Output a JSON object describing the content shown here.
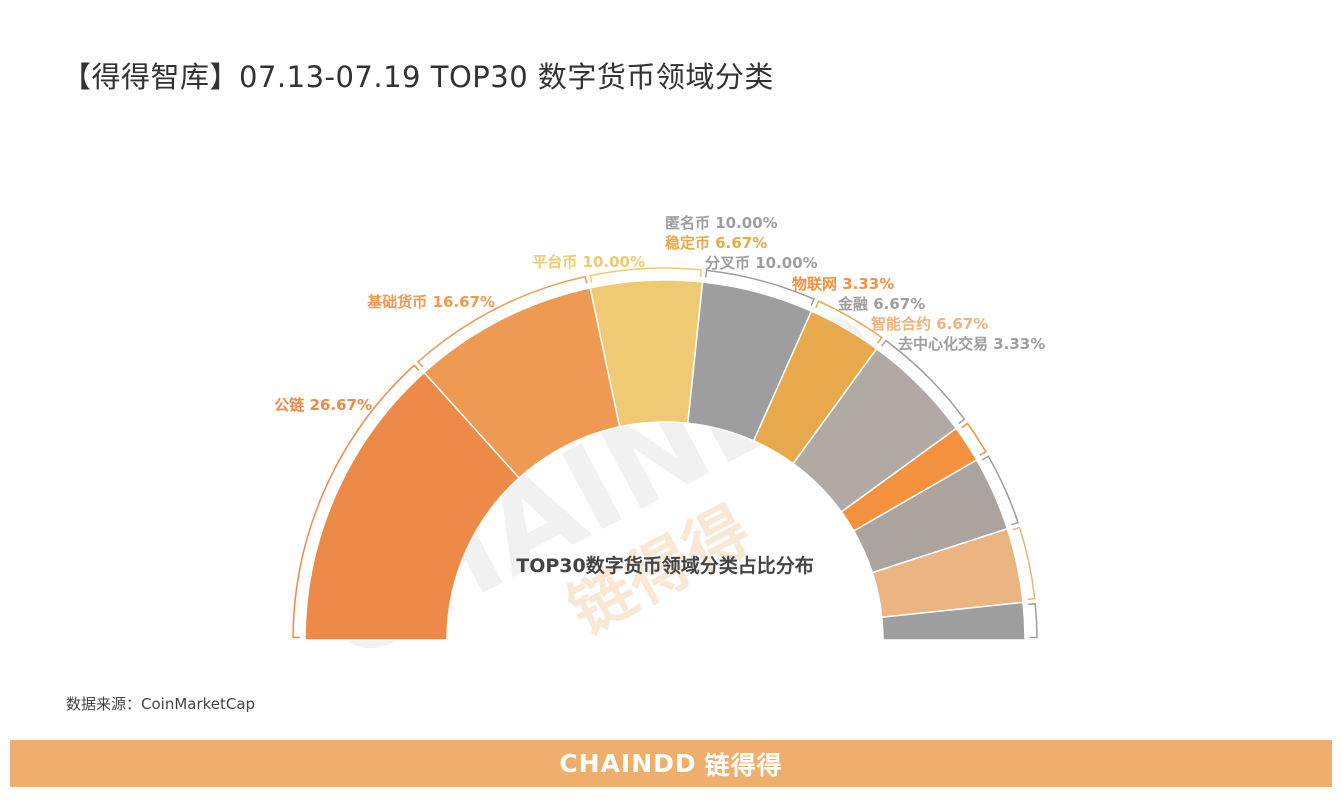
{
  "page": {
    "title": "【得得智库】07.13-07.19  TOP30 数字货币领域分类",
    "source": "数据来源：CoinMarketCap",
    "footer_brand": "CHAINDD",
    "footer_brand_cn": "链得得",
    "watermark_text": "CHAINDD",
    "watermark_cn": "链得得"
  },
  "colors": {
    "gray": "#9E9E9E",
    "pale_gray": "#B1A9A3",
    "orange_dark": "#EE8A47",
    "orange": "#EF9A52",
    "yellow": "#EFCA72",
    "amber": "#E8A84C",
    "bright_orange": "#F3913F",
    "peach": "#EBB480",
    "footer": "#EEAF6C"
  },
  "chart_data": {
    "type": "pie",
    "subtype": "half-donut",
    "center_label": "TOP30数字货币领域分类占比分布",
    "series": [
      {
        "name": "公链",
        "value": 26.67,
        "label": "公链 26.67%",
        "color": "#EE8A47",
        "label_color": "#EE8A47"
      },
      {
        "name": "基础货币",
        "value": 16.67,
        "label": "基础货币 16.67%",
        "color": "#EF9A52",
        "label_color": "#EF9A52"
      },
      {
        "name": "平台币",
        "value": 10.0,
        "label": "平台币 10.00%",
        "color": "#EFCA72",
        "label_color": "#EFCA72"
      },
      {
        "name": "匿名币",
        "value": 10.0,
        "label": "匿名币 10.00%",
        "color": "#9E9E9E",
        "label_color": "#9E9E9E"
      },
      {
        "name": "稳定币",
        "value": 6.67,
        "label": "稳定币 6.67%",
        "color": "#E8A84C",
        "label_color": "#E8A84C"
      },
      {
        "name": "分叉币",
        "value": 10.0,
        "label": "分叉币 10.00%",
        "color": "#B1A9A3",
        "label_color": "#9E9E9E"
      },
      {
        "name": "物联网",
        "value": 3.33,
        "label": "物联网 3.33%",
        "color": "#F3913F",
        "label_color": "#F3913F"
      },
      {
        "name": "金融",
        "value": 6.67,
        "label": "金融 6.67%",
        "color": "#ABA39D",
        "label_color": "#9E9E9E"
      },
      {
        "name": "智能合约",
        "value": 6.67,
        "label": "智能合约 6.67%",
        "color": "#EBB480",
        "label_color": "#EBB480"
      },
      {
        "name": "去中心化交易",
        "value": 3.33,
        "label": "去中心化交易 3.33%",
        "color": "#9E9E9E",
        "label_color": "#9E9E9E"
      }
    ]
  }
}
